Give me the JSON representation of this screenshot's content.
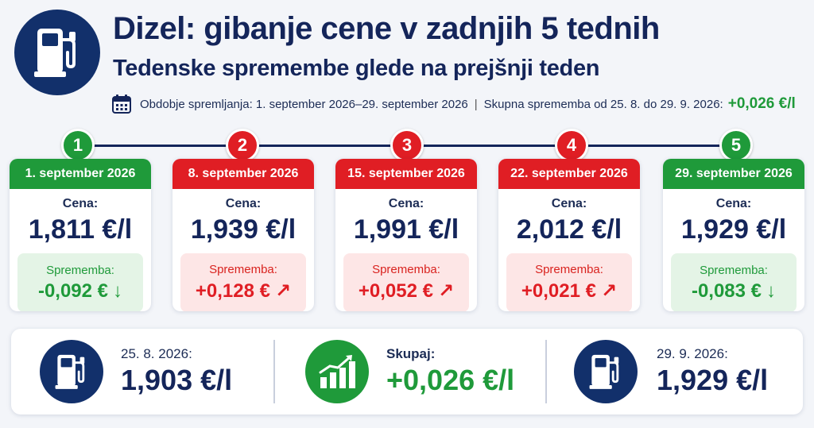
{
  "header": {
    "title": "Dizel: gibanje cene v zadnjih 5 tednih",
    "subtitle": "Tedenske spremembe glede na prejšnji teden",
    "logo_icon": "fuel-pump-icon"
  },
  "period": {
    "icon": "calendar-icon",
    "text": "Obdobje spremljanja: 1. september 2026–29. september 2026",
    "separator": "|",
    "total_label": "Skupna sprememba od 25. 8. do 29. 9. 2026:",
    "total_value": "+0,026 €/l"
  },
  "weeks": [
    {
      "step": "1",
      "date": "1. september 2026",
      "price_label": "Cena:",
      "price": "1,811 €/l",
      "change_label": "Sprememba:",
      "change": "-0,092 €",
      "arrow": "↓",
      "direction": "down"
    },
    {
      "step": "2",
      "date": "8. september 2026",
      "price_label": "Cena:",
      "price": "1,939 €/l",
      "change_label": "Sprememba:",
      "change": "+0,128 €",
      "arrow": "↗",
      "direction": "up"
    },
    {
      "step": "3",
      "date": "15. september 2026",
      "price_label": "Cena:",
      "price": "1,991 €/l",
      "change_label": "Sprememba:",
      "change": "+0,052 €",
      "arrow": "↗",
      "direction": "up"
    },
    {
      "step": "4",
      "date": "22. september 2026",
      "price_label": "Cena:",
      "price": "2,012 €/l",
      "change_label": "Sprememba:",
      "change": "+0,021 €",
      "arrow": "↗",
      "direction": "up"
    },
    {
      "step": "5",
      "date": "29. september 2026",
      "price_label": "Cena:",
      "price": "1,929 €/l",
      "change_label": "Sprememba:",
      "change": "-0,083 €",
      "arrow": "↓",
      "direction": "down"
    }
  ],
  "summary": {
    "start": {
      "label": "25. 8. 2026:",
      "value": "1,903 €/l",
      "icon": "fuel-pump-icon"
    },
    "total": {
      "label": "Skupaj:",
      "value": "+0,026 €/l",
      "icon": "bar-chart-up-icon"
    },
    "end": {
      "label": "29. 9. 2026:",
      "value": "1,929 €/l",
      "icon": "fuel-pump-icon"
    }
  },
  "colors": {
    "navy": "#14255a",
    "green": "#1f9a3a",
    "red": "#e01e24"
  }
}
